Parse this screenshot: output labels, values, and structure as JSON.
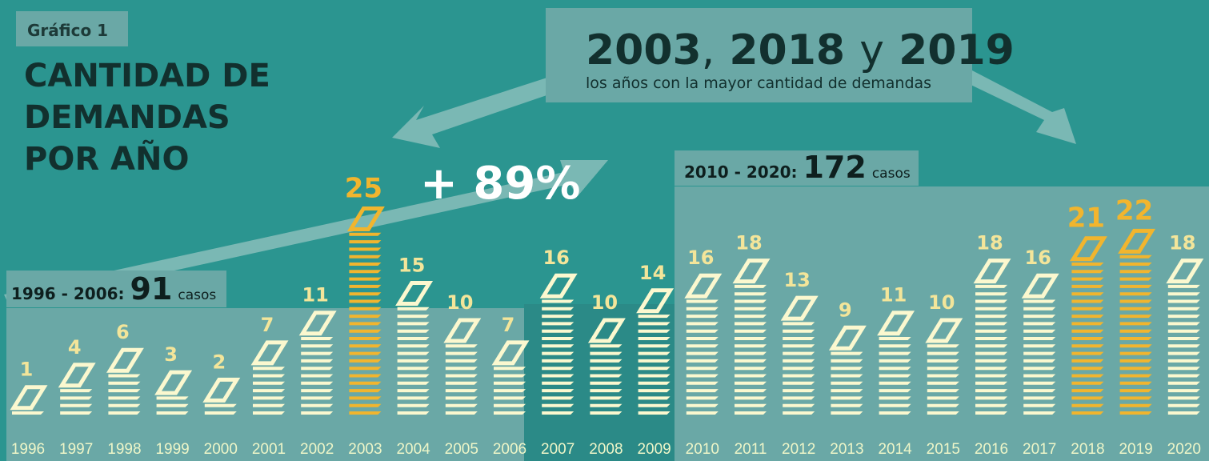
{
  "chart_data": {
    "type": "bar",
    "kicker": "Gráfico 1",
    "title": [
      "CANTIDAD DE",
      "DEMANDAS",
      "POR AÑO"
    ],
    "callout": {
      "parts": [
        "2003",
        ",",
        "2018",
        "y",
        "2019"
      ],
      "text": "los años con la mayor cantidad de demandas"
    },
    "annotation": "+ 89%",
    "periods": [
      {
        "label": "1996 - 2006:",
        "total": 91,
        "unit": "casos"
      },
      {
        "label": "2010 - 2020:",
        "total": 172,
        "unit": "casos"
      }
    ],
    "categories": [
      "1996",
      "1997",
      "1998",
      "1999",
      "2000",
      "2001",
      "2002",
      "2003",
      "2004",
      "2005",
      "2006",
      "2007",
      "2008",
      "2009",
      "2010",
      "2011",
      "2012",
      "2013",
      "2014",
      "2015",
      "2016",
      "2017",
      "2018",
      "2019",
      "2020"
    ],
    "values": [
      1,
      4,
      6,
      3,
      2,
      7,
      11,
      25,
      15,
      10,
      7,
      16,
      10,
      14,
      16,
      18,
      13,
      9,
      11,
      10,
      18,
      16,
      21,
      22,
      18
    ],
    "color": "#fbf8cf",
    "highlight": [
      "2003",
      "2018",
      "2019"
    ],
    "highlight_color": "#f1b52e"
  }
}
